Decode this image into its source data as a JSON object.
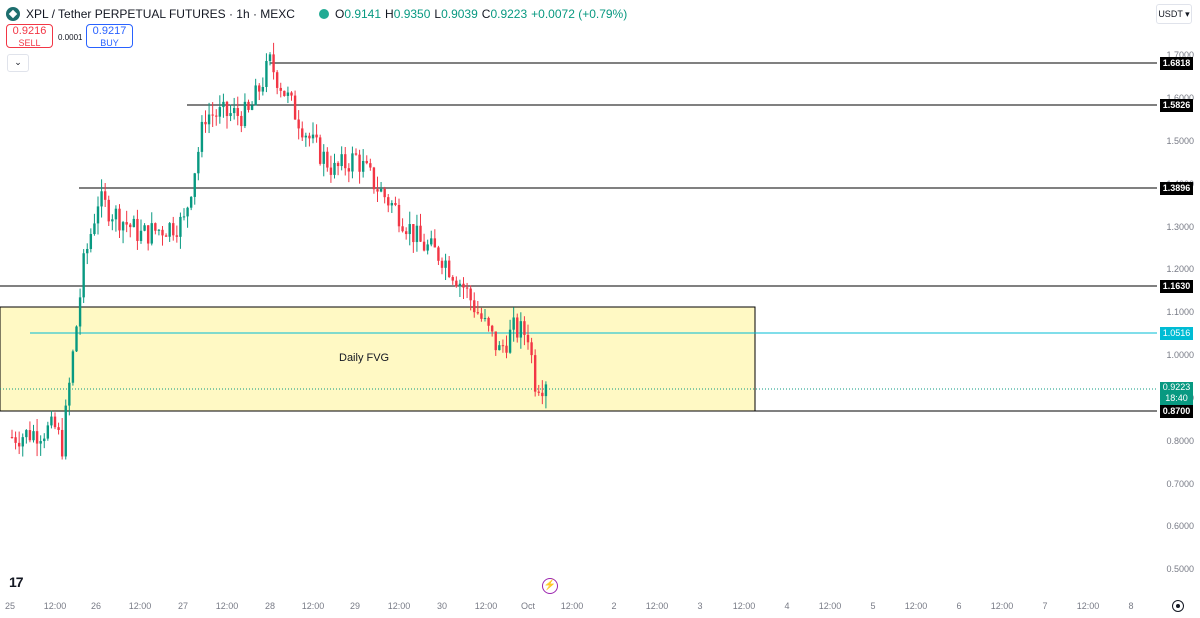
{
  "header": {
    "title": "XPL / Tether PERPETUAL FUTURES · 1h · MEXC",
    "open_label": "O",
    "open": "0.9141",
    "high_label": "H",
    "high": "0.9350",
    "low_label": "L",
    "low": "0.9039",
    "close_label": "C",
    "close": "0.9223",
    "change": "+0.0072 (+0.79%)"
  },
  "trade": {
    "sell_price": "0.9216",
    "sell_label": "SELL",
    "spread": "0.0001",
    "buy_price": "0.9217",
    "buy_label": "BUY"
  },
  "currency": "USDT",
  "fvg_label": "Daily FVG",
  "colors": {
    "up": "#089981",
    "down": "#f23645",
    "fvg_fill": "#fff9c4",
    "hline": "#000000",
    "cyan": "#00bcd4"
  },
  "price_axis": [
    "1.7000",
    "1.6000",
    "1.5000",
    "1.4000",
    "1.3000",
    "1.2000",
    "1.1000",
    "1.0000",
    "0.9000",
    "0.8000",
    "0.7000",
    "0.6000",
    "0.5000"
  ],
  "level_tags": [
    "1.6818",
    "1.5826",
    "1.3896",
    "1.1630",
    "0.8700"
  ],
  "cyan_tag": "1.0516",
  "current_price": "0.9223",
  "countdown": "18:40",
  "time_axis": [
    "25",
    "12:00",
    "26",
    "12:00",
    "27",
    "12:00",
    "28",
    "12:00",
    "29",
    "12:00",
    "30",
    "12:00",
    "Oct",
    "12:00",
    "2",
    "12:00",
    "3",
    "12:00",
    "4",
    "12:00",
    "5",
    "12:00",
    "6",
    "12:00",
    "7",
    "12:00",
    "8"
  ],
  "chart_data": {
    "type": "candlestick",
    "series_name": "XPL / Tether PERPETUAL FUTURES",
    "interval": "1h",
    "x_start": "Sep 25",
    "x_end": "Oct 1",
    "close_points": [
      {
        "t": "Sep 25 00:00",
        "close": 0.8
      },
      {
        "t": "Sep 25 12:00",
        "close": 0.82
      },
      {
        "t": "Sep 25 14:00",
        "close": 0.78
      },
      {
        "t": "Sep 25 20:00",
        "close": 1.2
      },
      {
        "t": "Sep 26 00:00",
        "close": 1.35
      },
      {
        "t": "Sep 26 12:00",
        "close": 1.27
      },
      {
        "t": "Sep 27 00:00",
        "close": 1.3
      },
      {
        "t": "Sep 27 06:00",
        "close": 1.55
      },
      {
        "t": "Sep 27 18:00",
        "close": 1.55
      },
      {
        "t": "Sep 28 00:00",
        "close": 1.67
      },
      {
        "t": "Sep 28 06:00",
        "close": 1.57
      },
      {
        "t": "Sep 28 12:00",
        "close": 1.48
      },
      {
        "t": "Sep 28 18:00",
        "close": 1.42
      },
      {
        "t": "Sep 29 00:00",
        "close": 1.45
      },
      {
        "t": "Sep 29 06:00",
        "close": 1.38
      },
      {
        "t": "Sep 29 12:00",
        "close": 1.32
      },
      {
        "t": "Sep 29 18:00",
        "close": 1.25
      },
      {
        "t": "Sep 30 00:00",
        "close": 1.22
      },
      {
        "t": "Sep 30 06:00",
        "close": 1.15
      },
      {
        "t": "Sep 30 12:00",
        "close": 1.06
      },
      {
        "t": "Sep 30 16:00",
        "close": 1.0
      },
      {
        "t": "Sep 30 20:00",
        "close": 1.05
      },
      {
        "t": "Oct 1 00:00",
        "close": 1.04
      },
      {
        "t": "Oct 1 02:00",
        "close": 0.93
      },
      {
        "t": "Oct 1 05:00",
        "close": 0.9223
      }
    ],
    "horizontal_levels": [
      1.6818,
      1.5826,
      1.3896,
      1.163,
      0.87
    ],
    "cyan_level": 1.0516,
    "fvg_zone": [
      0.87,
      1.106
    ],
    "ylim": [
      0.45,
      1.75
    ]
  }
}
